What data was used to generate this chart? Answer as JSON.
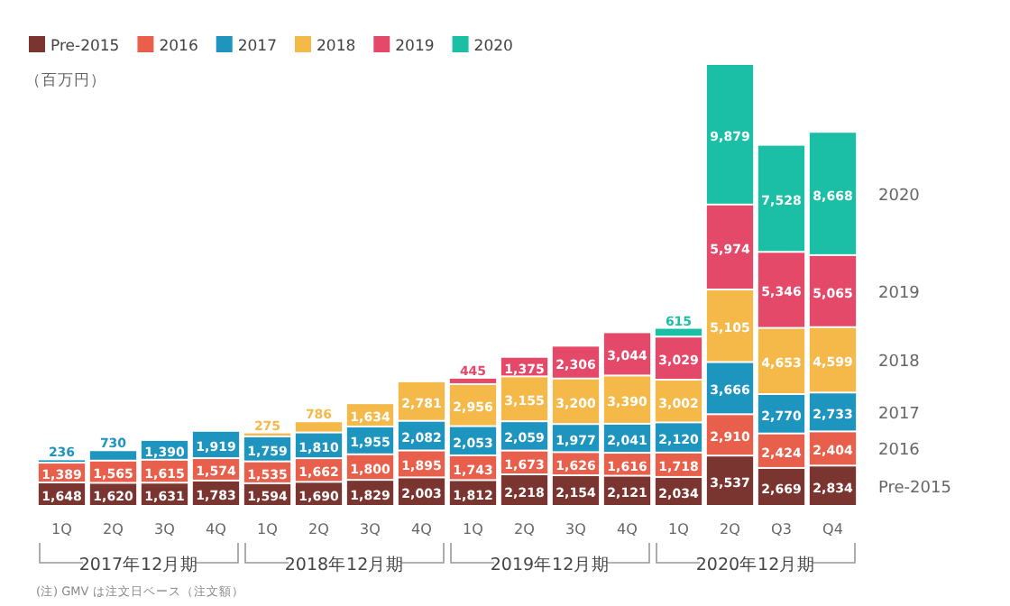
{
  "chart_data": {
    "type": "bar",
    "stacked": true,
    "legend": "top left",
    "ylabel": "（百万円）",
    "categories": [
      "1Q",
      "2Q",
      "3Q",
      "4Q",
      "1Q",
      "2Q",
      "3Q",
      "4Q",
      "1Q",
      "2Q",
      "3Q",
      "4Q",
      "1Q",
      "2Q",
      "Q3",
      "Q4"
    ],
    "series": [
      {
        "name": "Pre-2015",
        "color": "#7b3530",
        "values": [
          1648,
          1620,
          1631,
          1783,
          1594,
          1690,
          1829,
          2003,
          1812,
          2218,
          2154,
          2121,
          2034,
          3537,
          2669,
          2834
        ],
        "value_labels": [
          "1,648",
          "1,620",
          "1,631",
          "1,783",
          "1,594",
          "1,690",
          "1,829",
          "2,003",
          "1,812",
          "2,218",
          "2,154",
          "2,121",
          "2,034",
          "3,537",
          "2,669",
          "2,834"
        ]
      },
      {
        "name": "2016",
        "color": "#e8604c",
        "values": [
          1389,
          1565,
          1615,
          1574,
          1535,
          1662,
          1800,
          1895,
          1743,
          1673,
          1626,
          1616,
          1718,
          2910,
          2424,
          2404
        ],
        "value_labels": [
          "1,389",
          "1,565",
          "1,615",
          "1,574",
          "1,535",
          "1,662",
          "1,800",
          "1,895",
          "1,743",
          "1,673",
          "1,626",
          "1,616",
          "1,718",
          "2,910",
          "2,424",
          "2,404"
        ]
      },
      {
        "name": "2017",
        "color": "#1e95bf",
        "values": [
          236,
          730,
          1390,
          1919,
          1759,
          1810,
          1955,
          2082,
          2053,
          2059,
          1977,
          2041,
          2120,
          3666,
          2770,
          2733
        ],
        "value_labels": [
          "236",
          "730",
          "1,390",
          "1,919",
          "1,759",
          "1,810",
          "1,955",
          "2,082",
          "2,053",
          "2,059",
          "1,977",
          "2,041",
          "2,120",
          "3,666",
          "2,770",
          "2,733"
        ]
      },
      {
        "name": "2018",
        "color": "#f5b94a",
        "values": [
          null,
          null,
          null,
          null,
          275,
          786,
          1634,
          2781,
          2956,
          3155,
          3200,
          3390,
          3002,
          5105,
          4653,
          4599
        ],
        "value_labels": [
          null,
          null,
          null,
          null,
          "275",
          "786",
          "1,634",
          "2,781",
          "2,956",
          "3,155",
          "3,200",
          "3,390",
          "3,002",
          "5,105",
          "4,653",
          "4,599"
        ]
      },
      {
        "name": "2019",
        "color": "#e5496a",
        "values": [
          null,
          null,
          null,
          null,
          null,
          null,
          null,
          null,
          445,
          1375,
          2306,
          3044,
          3029,
          5974,
          5346,
          5065
        ],
        "value_labels": [
          null,
          null,
          null,
          null,
          null,
          null,
          null,
          null,
          "445",
          "1,375",
          "2,306",
          "3,044",
          "3,029",
          "5,974",
          "5,346",
          "5,065"
        ]
      },
      {
        "name": "2020",
        "color": "#1bbfa5",
        "values": [
          null,
          null,
          null,
          null,
          null,
          null,
          null,
          null,
          null,
          null,
          null,
          null,
          615,
          9879,
          7528,
          8668
        ],
        "value_labels": [
          null,
          null,
          null,
          null,
          null,
          null,
          null,
          null,
          null,
          null,
          null,
          null,
          "615",
          "9,879",
          "7,528",
          "8,668"
        ]
      }
    ],
    "annotations": [
      "2017年12月期",
      "2018年12月期",
      "2019年12月期",
      "2020年12月期",
      "(注) GMV は注文日ベース（注文額）"
    ]
  }
}
